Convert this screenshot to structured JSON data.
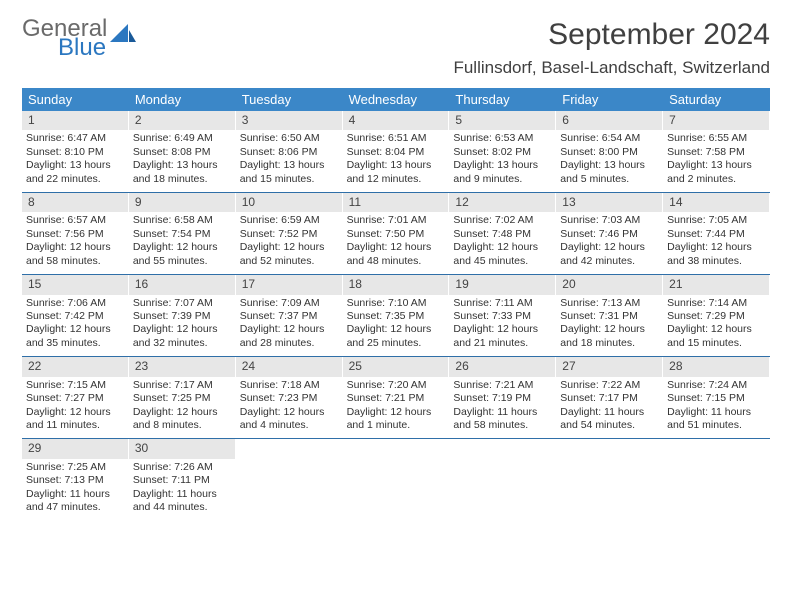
{
  "brand": {
    "general": "General",
    "blue": "Blue"
  },
  "title": "September 2024",
  "location": "Fullinsdorf, Basel-Landschaft, Switzerland",
  "colors": {
    "header_bg": "#3b87c8",
    "header_text": "#ffffff",
    "daynum_bg": "#e7e7e7",
    "week_border": "#2f6fa8",
    "body_text": "#333333",
    "logo_gray": "#6a6a6a",
    "logo_blue": "#2b77c0"
  },
  "dayNames": [
    "Sunday",
    "Monday",
    "Tuesday",
    "Wednesday",
    "Thursday",
    "Friday",
    "Saturday"
  ],
  "weeks": [
    [
      {
        "n": "1",
        "sr": "Sunrise: 6:47 AM",
        "ss": "Sunset: 8:10 PM",
        "d1": "Daylight: 13 hours",
        "d2": "and 22 minutes."
      },
      {
        "n": "2",
        "sr": "Sunrise: 6:49 AM",
        "ss": "Sunset: 8:08 PM",
        "d1": "Daylight: 13 hours",
        "d2": "and 18 minutes."
      },
      {
        "n": "3",
        "sr": "Sunrise: 6:50 AM",
        "ss": "Sunset: 8:06 PM",
        "d1": "Daylight: 13 hours",
        "d2": "and 15 minutes."
      },
      {
        "n": "4",
        "sr": "Sunrise: 6:51 AM",
        "ss": "Sunset: 8:04 PM",
        "d1": "Daylight: 13 hours",
        "d2": "and 12 minutes."
      },
      {
        "n": "5",
        "sr": "Sunrise: 6:53 AM",
        "ss": "Sunset: 8:02 PM",
        "d1": "Daylight: 13 hours",
        "d2": "and 9 minutes."
      },
      {
        "n": "6",
        "sr": "Sunrise: 6:54 AM",
        "ss": "Sunset: 8:00 PM",
        "d1": "Daylight: 13 hours",
        "d2": "and 5 minutes."
      },
      {
        "n": "7",
        "sr": "Sunrise: 6:55 AM",
        "ss": "Sunset: 7:58 PM",
        "d1": "Daylight: 13 hours",
        "d2": "and 2 minutes."
      }
    ],
    [
      {
        "n": "8",
        "sr": "Sunrise: 6:57 AM",
        "ss": "Sunset: 7:56 PM",
        "d1": "Daylight: 12 hours",
        "d2": "and 58 minutes."
      },
      {
        "n": "9",
        "sr": "Sunrise: 6:58 AM",
        "ss": "Sunset: 7:54 PM",
        "d1": "Daylight: 12 hours",
        "d2": "and 55 minutes."
      },
      {
        "n": "10",
        "sr": "Sunrise: 6:59 AM",
        "ss": "Sunset: 7:52 PM",
        "d1": "Daylight: 12 hours",
        "d2": "and 52 minutes."
      },
      {
        "n": "11",
        "sr": "Sunrise: 7:01 AM",
        "ss": "Sunset: 7:50 PM",
        "d1": "Daylight: 12 hours",
        "d2": "and 48 minutes."
      },
      {
        "n": "12",
        "sr": "Sunrise: 7:02 AM",
        "ss": "Sunset: 7:48 PM",
        "d1": "Daylight: 12 hours",
        "d2": "and 45 minutes."
      },
      {
        "n": "13",
        "sr": "Sunrise: 7:03 AM",
        "ss": "Sunset: 7:46 PM",
        "d1": "Daylight: 12 hours",
        "d2": "and 42 minutes."
      },
      {
        "n": "14",
        "sr": "Sunrise: 7:05 AM",
        "ss": "Sunset: 7:44 PM",
        "d1": "Daylight: 12 hours",
        "d2": "and 38 minutes."
      }
    ],
    [
      {
        "n": "15",
        "sr": "Sunrise: 7:06 AM",
        "ss": "Sunset: 7:42 PM",
        "d1": "Daylight: 12 hours",
        "d2": "and 35 minutes."
      },
      {
        "n": "16",
        "sr": "Sunrise: 7:07 AM",
        "ss": "Sunset: 7:39 PM",
        "d1": "Daylight: 12 hours",
        "d2": "and 32 minutes."
      },
      {
        "n": "17",
        "sr": "Sunrise: 7:09 AM",
        "ss": "Sunset: 7:37 PM",
        "d1": "Daylight: 12 hours",
        "d2": "and 28 minutes."
      },
      {
        "n": "18",
        "sr": "Sunrise: 7:10 AM",
        "ss": "Sunset: 7:35 PM",
        "d1": "Daylight: 12 hours",
        "d2": "and 25 minutes."
      },
      {
        "n": "19",
        "sr": "Sunrise: 7:11 AM",
        "ss": "Sunset: 7:33 PM",
        "d1": "Daylight: 12 hours",
        "d2": "and 21 minutes."
      },
      {
        "n": "20",
        "sr": "Sunrise: 7:13 AM",
        "ss": "Sunset: 7:31 PM",
        "d1": "Daylight: 12 hours",
        "d2": "and 18 minutes."
      },
      {
        "n": "21",
        "sr": "Sunrise: 7:14 AM",
        "ss": "Sunset: 7:29 PM",
        "d1": "Daylight: 12 hours",
        "d2": "and 15 minutes."
      }
    ],
    [
      {
        "n": "22",
        "sr": "Sunrise: 7:15 AM",
        "ss": "Sunset: 7:27 PM",
        "d1": "Daylight: 12 hours",
        "d2": "and 11 minutes."
      },
      {
        "n": "23",
        "sr": "Sunrise: 7:17 AM",
        "ss": "Sunset: 7:25 PM",
        "d1": "Daylight: 12 hours",
        "d2": "and 8 minutes."
      },
      {
        "n": "24",
        "sr": "Sunrise: 7:18 AM",
        "ss": "Sunset: 7:23 PM",
        "d1": "Daylight: 12 hours",
        "d2": "and 4 minutes."
      },
      {
        "n": "25",
        "sr": "Sunrise: 7:20 AM",
        "ss": "Sunset: 7:21 PM",
        "d1": "Daylight: 12 hours",
        "d2": "and 1 minute."
      },
      {
        "n": "26",
        "sr": "Sunrise: 7:21 AM",
        "ss": "Sunset: 7:19 PM",
        "d1": "Daylight: 11 hours",
        "d2": "and 58 minutes."
      },
      {
        "n": "27",
        "sr": "Sunrise: 7:22 AM",
        "ss": "Sunset: 7:17 PM",
        "d1": "Daylight: 11 hours",
        "d2": "and 54 minutes."
      },
      {
        "n": "28",
        "sr": "Sunrise: 7:24 AM",
        "ss": "Sunset: 7:15 PM",
        "d1": "Daylight: 11 hours",
        "d2": "and 51 minutes."
      }
    ],
    [
      {
        "n": "29",
        "sr": "Sunrise: 7:25 AM",
        "ss": "Sunset: 7:13 PM",
        "d1": "Daylight: 11 hours",
        "d2": "and 47 minutes."
      },
      {
        "n": "30",
        "sr": "Sunrise: 7:26 AM",
        "ss": "Sunset: 7:11 PM",
        "d1": "Daylight: 11 hours",
        "d2": "and 44 minutes."
      },
      null,
      null,
      null,
      null,
      null
    ]
  ]
}
